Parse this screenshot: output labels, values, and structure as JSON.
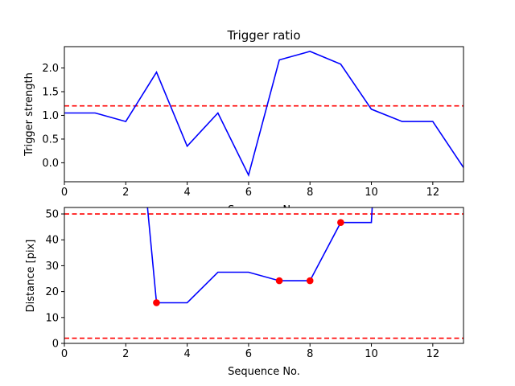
{
  "chart_data": [
    {
      "type": "line",
      "title": "Trigger ratio",
      "xlabel": "Sequence No.",
      "ylabel": "Trigger strength",
      "xlim": [
        0,
        13
      ],
      "ylim": [
        -0.4,
        2.45
      ],
      "xticks": [
        0,
        2,
        4,
        6,
        8,
        10,
        12
      ],
      "yticks": [
        0.0,
        0.5,
        1.0,
        1.5,
        2.0
      ],
      "ytick_labels": [
        "0.0",
        "0.5",
        "1.0",
        "1.5",
        "2.0"
      ],
      "series": [
        {
          "color": "#0000ff",
          "x": [
            0,
            1,
            2,
            3,
            4,
            5,
            6,
            7,
            8,
            9,
            10,
            11,
            12,
            13
          ],
          "y": [
            1.05,
            1.05,
            0.87,
            1.91,
            0.35,
            1.05,
            -0.26,
            2.17,
            2.35,
            2.08,
            1.13,
            0.87,
            0.87,
            -0.1
          ]
        }
      ],
      "hlines": [
        {
          "y": 1.2,
          "color": "#ff0000",
          "style": "dashed"
        }
      ],
      "grid": false
    },
    {
      "type": "line",
      "title": "",
      "xlabel": "Sequence No.",
      "ylabel": "Distance [pix]",
      "xlim": [
        0,
        13
      ],
      "ylim": [
        0,
        52.5
      ],
      "xticks": [
        0,
        2,
        4,
        6,
        8,
        10,
        12
      ],
      "yticks": [
        0,
        10,
        20,
        30,
        40,
        50
      ],
      "ytick_labels": [
        "0",
        "10",
        "20",
        "30",
        "40",
        "50"
      ],
      "series": [
        {
          "color": "#0000ff",
          "style": "steps-post",
          "x": [
            2.7,
            3,
            4,
            5,
            6,
            7,
            8,
            9,
            10,
            10.03
          ],
          "y": [
            53.5,
            15.7,
            15.7,
            27.5,
            27.5,
            24.2,
            24.2,
            46.7,
            46.7,
            53.5
          ]
        }
      ],
      "markers": {
        "color": "#ff0000",
        "x": [
          3,
          7,
          8,
          9
        ],
        "y": [
          15.7,
          24.2,
          24.2,
          46.7
        ]
      },
      "hlines": [
        {
          "y": 50,
          "color": "#ff0000",
          "style": "dashed"
        },
        {
          "y": 2,
          "color": "#ff0000",
          "style": "dashed"
        }
      ],
      "grid": false
    }
  ]
}
